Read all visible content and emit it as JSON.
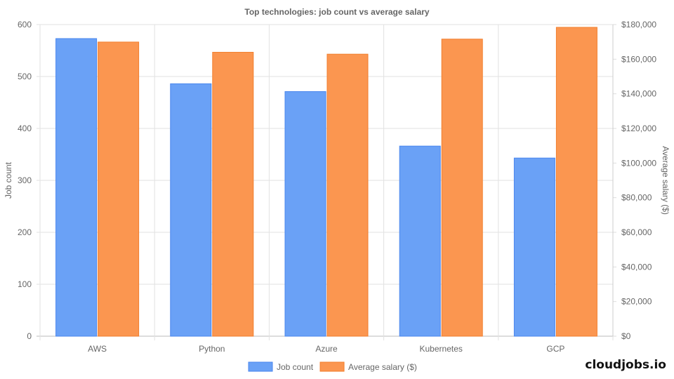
{
  "chart_data": {
    "type": "bar",
    "title": "Top technologies: job count vs average salary",
    "categories": [
      "AWS",
      "Python",
      "Azure",
      "Kubernetes",
      "GCP"
    ],
    "series": [
      {
        "name": "Job count",
        "axis": "left",
        "color": "#6aa1f6",
        "border": "#4a86ee",
        "values": [
          573,
          486,
          471,
          366,
          343
        ]
      },
      {
        "name": "Average salary ($)",
        "axis": "right",
        "color": "#fb9650",
        "border": "#f27f2e",
        "values": [
          169900,
          164000,
          162900,
          171600,
          178400
        ]
      }
    ],
    "ylabel": "Job count",
    "ylabel_right": "Average salary ($)",
    "ylim": [
      0,
      600
    ],
    "ylim_right": [
      0,
      180000
    ],
    "yticks": [
      "0",
      "100",
      "200",
      "300",
      "400",
      "500",
      "600"
    ],
    "yticks_right": [
      "$0",
      "$20,000",
      "$40,000",
      "$60,000",
      "$80,000",
      "$100,000",
      "$120,000",
      "$140,000",
      "$160,000",
      "$180,000"
    ],
    "grid": true,
    "legend": "bottom"
  },
  "brand": "cloudjobs.io"
}
